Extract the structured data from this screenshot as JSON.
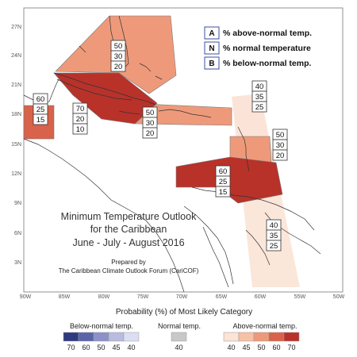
{
  "title": {
    "line1": "Minimum Temperature Outlook",
    "line2": "for the Caribbean",
    "line3": "June - July - August 2016",
    "prepared": "Prepared by",
    "org": "The Caribbean Climate Outlook Forum (CariCOF)"
  },
  "key": [
    {
      "letter": "A",
      "text": "% above-normal temp."
    },
    {
      "letter": "N",
      "text": "% normal temperature"
    },
    {
      "letter": "B",
      "text": "% below-normal temp."
    }
  ],
  "lat_labels": [
    "27N",
    "24N",
    "21N",
    "18N",
    "15N",
    "12N",
    "9N",
    "6N",
    "3N"
  ],
  "lon_labels": [
    "90W",
    "85W",
    "80W",
    "75W",
    "70W",
    "65W",
    "60W",
    "55W",
    "50W"
  ],
  "region_values": [
    {
      "name": "bahamas",
      "a": "50",
      "n": "30",
      "b": "20"
    },
    {
      "name": "belize",
      "a": "60",
      "n": "25",
      "b": "15"
    },
    {
      "name": "cuba",
      "a": "70",
      "n": "20",
      "b": "10"
    },
    {
      "name": "greater-antilles",
      "a": "50",
      "n": "30",
      "b": "20"
    },
    {
      "name": "northern-leewards",
      "a": "40",
      "n": "35",
      "b": "25"
    },
    {
      "name": "eastern-caribbean",
      "a": "50",
      "n": "30",
      "b": "20"
    },
    {
      "name": "southern-caribbean",
      "a": "60",
      "n": "25",
      "b": "15"
    },
    {
      "name": "guianas",
      "a": "40",
      "n": "35",
      "b": "25"
    }
  ],
  "legend": {
    "title": "Probability (%) of Most Likely Category",
    "below": {
      "label": "Below-normal temp.",
      "ticks": [
        "70",
        "60",
        "50",
        "45",
        "40"
      ],
      "colors": [
        "#2f3a80",
        "#5a64a8",
        "#8c92c8",
        "#b8bce0",
        "#dcdff2"
      ]
    },
    "normal": {
      "label": "Normal temp.",
      "ticks": [
        "40"
      ],
      "colors": [
        "#c8c8c8"
      ]
    },
    "above": {
      "label": "Above-normal temp.",
      "ticks": [
        "40",
        "45",
        "50",
        "60",
        "70"
      ],
      "colors": [
        "#fbe3d6",
        "#f6c1a6",
        "#ee9a7a",
        "#d9624a",
        "#b8322a"
      ]
    }
  }
}
